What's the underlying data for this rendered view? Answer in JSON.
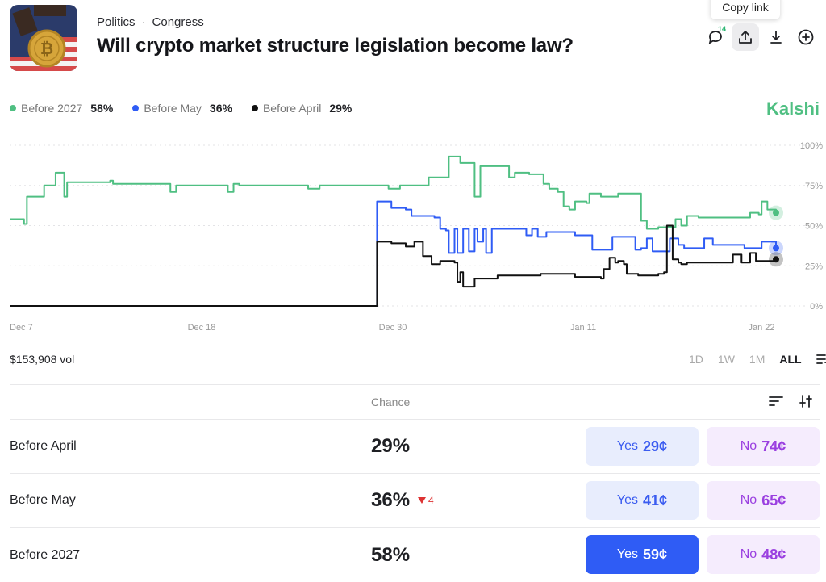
{
  "header": {
    "category": "Politics",
    "separator": "·",
    "subcategory": "Congress",
    "title": "Will crypto market structure legislation become law?",
    "tooltip": "Copy link",
    "comment_count": "14"
  },
  "legend": [
    {
      "label": "Before 2027",
      "value": "58%",
      "color": "#4fbf82"
    },
    {
      "label": "Before May",
      "value": "36%",
      "color": "#2f5cf5"
    },
    {
      "label": "Before April",
      "value": "29%",
      "color": "#111111"
    }
  ],
  "brand": "Kalshi",
  "colors": {
    "accent_green": "#4fbf82",
    "accent_blue": "#2f5cf5",
    "accent_black": "#111111",
    "no_purple": "#9a3fe0"
  },
  "chart_data": {
    "type": "line",
    "x_ticks": [
      "Dec 7",
      "Dec 18",
      "Dec 30",
      "Jan 11",
      "Jan 22"
    ],
    "y_ticks": [
      "100%",
      "75%",
      "50%",
      "25%",
      "0%"
    ],
    "ylim": [
      0,
      100
    ],
    "grid": true,
    "legend_position": "top-left",
    "series": [
      {
        "name": "Before 2027",
        "color": "#4fbf82",
        "points": [
          [
            0,
            54
          ],
          [
            4,
            54
          ],
          [
            5,
            51
          ],
          [
            6,
            68
          ],
          [
            11,
            68
          ],
          [
            12,
            75
          ],
          [
            15,
            75
          ],
          [
            16,
            83
          ],
          [
            18,
            83
          ],
          [
            19,
            68
          ],
          [
            20,
            77
          ],
          [
            35,
            78
          ],
          [
            36,
            76
          ],
          [
            55,
            76
          ],
          [
            56,
            71
          ],
          [
            58,
            75
          ],
          [
            75,
            75
          ],
          [
            76,
            71
          ],
          [
            78,
            76
          ],
          [
            80,
            75
          ],
          [
            103,
            75
          ],
          [
            104,
            73
          ],
          [
            108,
            75
          ],
          [
            131,
            75
          ],
          [
            132,
            73
          ],
          [
            136,
            75
          ],
          [
            145,
            75
          ],
          [
            146,
            80
          ],
          [
            152,
            80
          ],
          [
            153,
            93
          ],
          [
            156,
            93
          ],
          [
            157,
            89
          ],
          [
            161,
            89
          ],
          [
            162,
            68
          ],
          [
            164,
            87
          ],
          [
            173,
            87
          ],
          [
            174,
            80
          ],
          [
            176,
            83
          ],
          [
            180,
            83
          ],
          [
            181,
            82
          ],
          [
            185,
            82
          ],
          [
            186,
            76
          ],
          [
            188,
            73
          ],
          [
            191,
            71
          ],
          [
            193,
            62
          ],
          [
            195,
            60
          ],
          [
            197,
            65
          ],
          [
            201,
            64
          ],
          [
            202,
            70
          ],
          [
            206,
            68
          ],
          [
            212,
            70
          ],
          [
            219,
            70
          ],
          [
            220,
            53
          ],
          [
            222,
            48
          ],
          [
            226,
            49
          ],
          [
            230,
            49
          ],
          [
            232,
            54
          ],
          [
            234,
            50
          ],
          [
            236,
            56
          ],
          [
            240,
            55
          ],
          [
            256,
            55
          ],
          [
            258,
            58
          ],
          [
            261,
            57
          ],
          [
            262,
            65
          ],
          [
            264,
            60
          ],
          [
            267,
            58
          ]
        ]
      },
      {
        "name": "Before May",
        "color": "#2f5cf5",
        "points": [
          [
            0,
            0
          ],
          [
            127,
            0
          ],
          [
            128,
            65
          ],
          [
            133,
            61
          ],
          [
            138,
            60
          ],
          [
            140,
            56
          ],
          [
            147,
            56
          ],
          [
            148,
            55
          ],
          [
            150,
            48
          ],
          [
            152,
            47
          ],
          [
            153,
            33
          ],
          [
            155,
            48
          ],
          [
            156,
            33
          ],
          [
            158,
            48
          ],
          [
            160,
            34
          ],
          [
            162,
            48
          ],
          [
            163,
            40
          ],
          [
            165,
            48
          ],
          [
            166,
            33
          ],
          [
            168,
            48
          ],
          [
            179,
            48
          ],
          [
            180,
            44
          ],
          [
            182,
            48
          ],
          [
            184,
            43
          ],
          [
            187,
            46
          ],
          [
            196,
            46
          ],
          [
            197,
            44
          ],
          [
            200,
            44
          ],
          [
            203,
            35
          ],
          [
            210,
            43
          ],
          [
            217,
            43
          ],
          [
            218,
            35
          ],
          [
            220,
            36
          ],
          [
            222,
            42
          ],
          [
            224,
            34
          ],
          [
            229,
            34
          ],
          [
            230,
            42
          ],
          [
            233,
            38
          ],
          [
            235,
            36
          ],
          [
            237,
            36
          ],
          [
            240,
            36
          ],
          [
            242,
            42
          ],
          [
            245,
            38
          ],
          [
            255,
            38
          ],
          [
            256,
            36
          ],
          [
            260,
            36
          ],
          [
            262,
            40
          ],
          [
            267,
            36
          ]
        ]
      },
      {
        "name": "Before April",
        "color": "#111111",
        "points": [
          [
            0,
            0
          ],
          [
            127,
            0
          ],
          [
            128,
            40
          ],
          [
            133,
            39
          ],
          [
            138,
            37
          ],
          [
            141,
            40
          ],
          [
            144,
            31
          ],
          [
            147,
            26
          ],
          [
            150,
            28
          ],
          [
            155,
            27
          ],
          [
            156,
            15
          ],
          [
            157,
            21
          ],
          [
            158,
            12
          ],
          [
            162,
            17
          ],
          [
            170,
            19
          ],
          [
            180,
            19
          ],
          [
            185,
            20
          ],
          [
            193,
            20
          ],
          [
            197,
            18
          ],
          [
            201,
            18
          ],
          [
            206,
            17
          ],
          [
            207,
            23
          ],
          [
            209,
            30
          ],
          [
            211,
            27
          ],
          [
            212,
            28
          ],
          [
            214,
            26
          ],
          [
            215,
            20
          ],
          [
            219,
            19
          ],
          [
            224,
            19
          ],
          [
            226,
            20
          ],
          [
            228,
            21
          ],
          [
            229,
            50
          ],
          [
            231,
            29
          ],
          [
            233,
            27
          ],
          [
            234,
            26
          ],
          [
            236,
            27
          ],
          [
            250,
            27
          ],
          [
            252,
            32
          ],
          [
            255,
            27
          ],
          [
            258,
            33
          ],
          [
            260,
            28
          ],
          [
            267,
            29
          ]
        ]
      }
    ],
    "x_domain": [
      0,
      267
    ],
    "end_values": [
      58,
      36,
      29
    ]
  },
  "volume": "$153,908 vol",
  "ranges": [
    "1D",
    "1W",
    "1M",
    "ALL"
  ],
  "table": {
    "column_header": "Chance",
    "rows": [
      {
        "label": "Before April",
        "chance": "29%",
        "delta": "",
        "yes_label": "Yes",
        "yes_price": "29¢",
        "no_label": "No",
        "no_price": "74¢"
      },
      {
        "label": "Before May",
        "chance": "36%",
        "delta": "4",
        "yes_label": "Yes",
        "yes_price": "41¢",
        "no_label": "No",
        "no_price": "65¢"
      },
      {
        "label": "Before 2027",
        "chance": "58%",
        "delta": "",
        "yes_label": "Yes",
        "yes_price": "59¢",
        "no_label": "No",
        "no_price": "48¢"
      }
    ]
  }
}
